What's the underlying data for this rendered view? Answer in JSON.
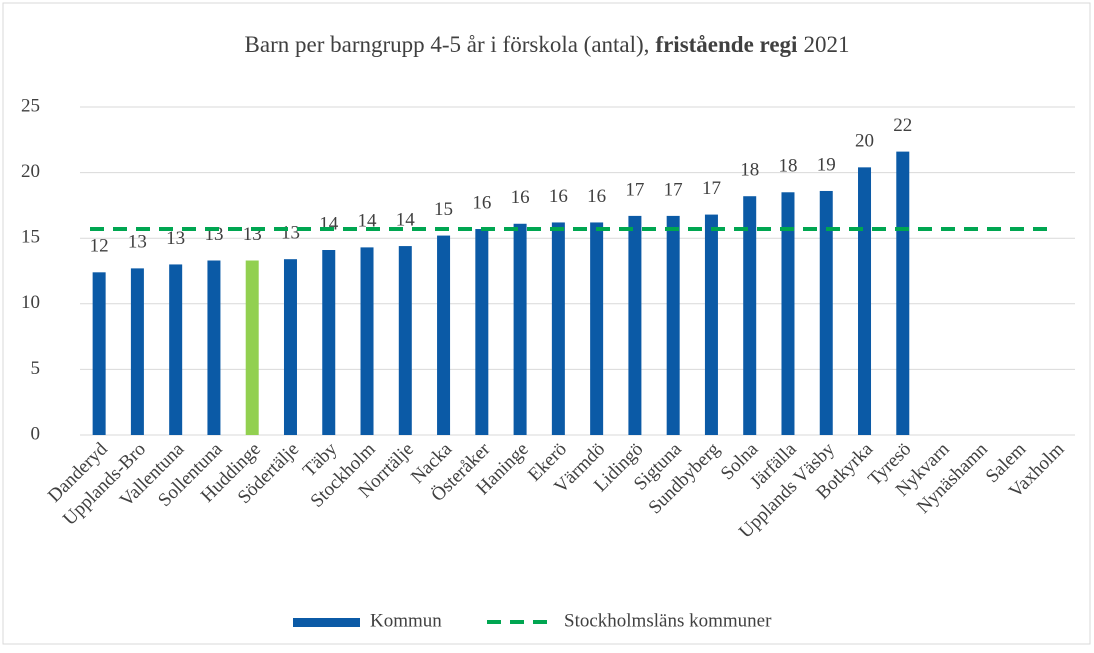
{
  "chart_data": {
    "type": "bar",
    "title_parts": [
      "Barn per barngrupp 4-5 år i förskola (antal),",
      "fristående regi",
      "2021"
    ],
    "categories": [
      "Danderyd",
      "Upplands-Bro",
      "Vallentuna",
      "Sollentuna",
      "Huddinge",
      "Södertälje",
      "Täby",
      "Stockholm",
      "Norrtälje",
      "Nacka",
      "Österåker",
      "Haninge",
      "Ekerö",
      "Värmdö",
      "Lidingö",
      "Sigtuna",
      "Sundbyberg",
      "Solna",
      "Järfälla",
      "Upplands Väsby",
      "Botkyrka",
      "Tyresö",
      "Nykvarn",
      "Nynäshamn",
      "Salem",
      "Vaxholm"
    ],
    "series": [
      {
        "name": "Kommun",
        "color": "#0b5aa6",
        "highlight_color": "#92d050",
        "highlight_category": "Huddinge",
        "values": [
          12.4,
          12.7,
          13.0,
          13.3,
          13.3,
          13.4,
          14.1,
          14.3,
          14.4,
          15.2,
          15.7,
          16.1,
          16.2,
          16.2,
          16.7,
          16.7,
          16.8,
          18.2,
          18.5,
          18.6,
          20.4,
          21.6,
          null,
          null,
          null,
          null
        ],
        "value_labels": [
          "12",
          "13",
          "13",
          "13",
          "13",
          "13",
          "14",
          "14",
          "14",
          "15",
          "16",
          "16",
          "16",
          "16",
          "17",
          "17",
          "17",
          "18",
          "18",
          "19",
          "20",
          "22",
          null,
          null,
          null,
          null
        ]
      }
    ],
    "reference": {
      "name": "Stockholmsläns kommuner",
      "value": 15.7,
      "color": "#00a651",
      "dashed": true
    },
    "ylim": [
      0,
      25
    ],
    "yticks": [
      0,
      5,
      10,
      15,
      20,
      25
    ],
    "grid": true,
    "legend": "bottom"
  }
}
